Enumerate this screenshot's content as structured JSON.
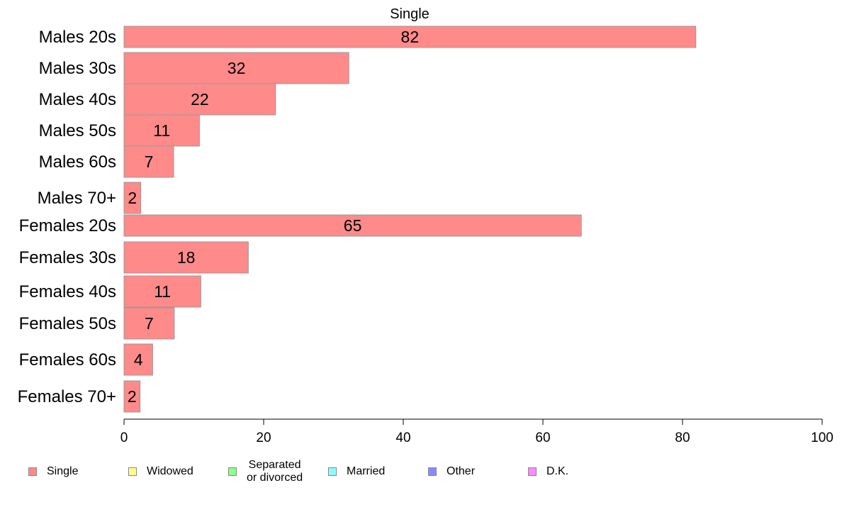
{
  "chart_data": {
    "type": "bar",
    "orientation": "horizontal",
    "title": "Single",
    "categories": [
      "Males 20s",
      "Males 30s",
      "Males 40s",
      "Males 50s",
      "Males 60s",
      "Males 70+",
      "Females 20s",
      "Females 30s",
      "Females 40s",
      "Females 50s",
      "Females 60s",
      "Females 70+"
    ],
    "series": [
      {
        "name": "Single",
        "values": [
          82,
          32,
          22,
          11,
          7,
          2,
          65,
          18,
          11,
          7,
          4,
          2
        ]
      }
    ],
    "bar_exact_values": [
      81.9,
      32.2,
      21.7,
      10.8,
      7.1,
      2.4,
      65.5,
      17.8,
      11.0,
      7.2,
      4.1,
      2.3
    ],
    "xlim": [
      0,
      100
    ],
    "xticks": [
      0,
      20,
      40,
      60,
      80,
      100
    ],
    "xlabel": "",
    "ylabel": "",
    "grid": false,
    "bar_color": "#ff8a8a",
    "legend_position": "bottom",
    "legend": [
      {
        "label": "Single",
        "color": "#ff8a8a"
      },
      {
        "label": "Widowed",
        "color": "#ffff8a"
      },
      {
        "label": "Separated\nor divorced",
        "color": "#8aff8a"
      },
      {
        "label": "Married",
        "color": "#8affff"
      },
      {
        "label": "Other",
        "color": "#8a8aff"
      },
      {
        "label": "D.K.",
        "color": "#ff8aff"
      }
    ]
  }
}
